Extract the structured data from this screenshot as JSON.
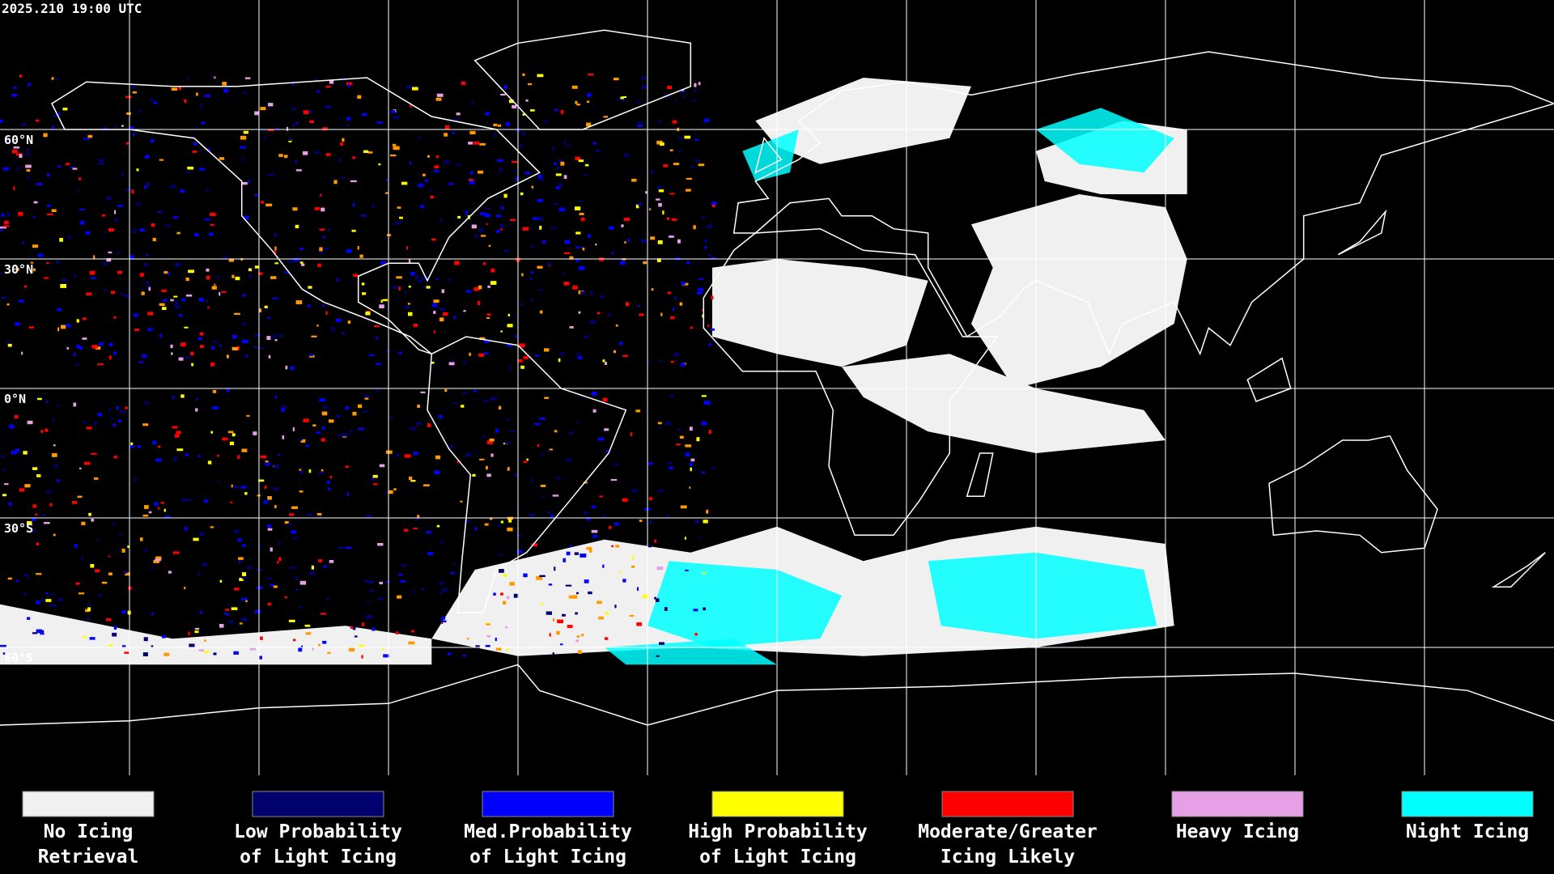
{
  "timestamp": "2025.210 19:00 UTC",
  "latitude_labels": [
    "60°N",
    "30°N",
    "0°N",
    "30°S",
    "60°S"
  ],
  "legend": [
    {
      "label": [
        "No Icing",
        "Retrieval"
      ],
      "color": "#f0f0f0"
    },
    {
      "label": [
        "Low Probability",
        "of Light Icing"
      ],
      "color": "#00006e"
    },
    {
      "label": [
        "Med.Probability",
        "of Light Icing"
      ],
      "color": "#0000ff"
    },
    {
      "label": [
        "High Probability",
        "of Light Icing"
      ],
      "color": "#ffff00"
    },
    {
      "label": [
        "Moderate/Greater",
        "Icing Likely"
      ],
      "color": "#ff0000"
    },
    {
      "label": [
        "Heavy Icing",
        ""
      ],
      "color": "#e6a0e6"
    },
    {
      "label": [
        "Night Icing",
        ""
      ],
      "color": "#00ffff"
    }
  ]
}
